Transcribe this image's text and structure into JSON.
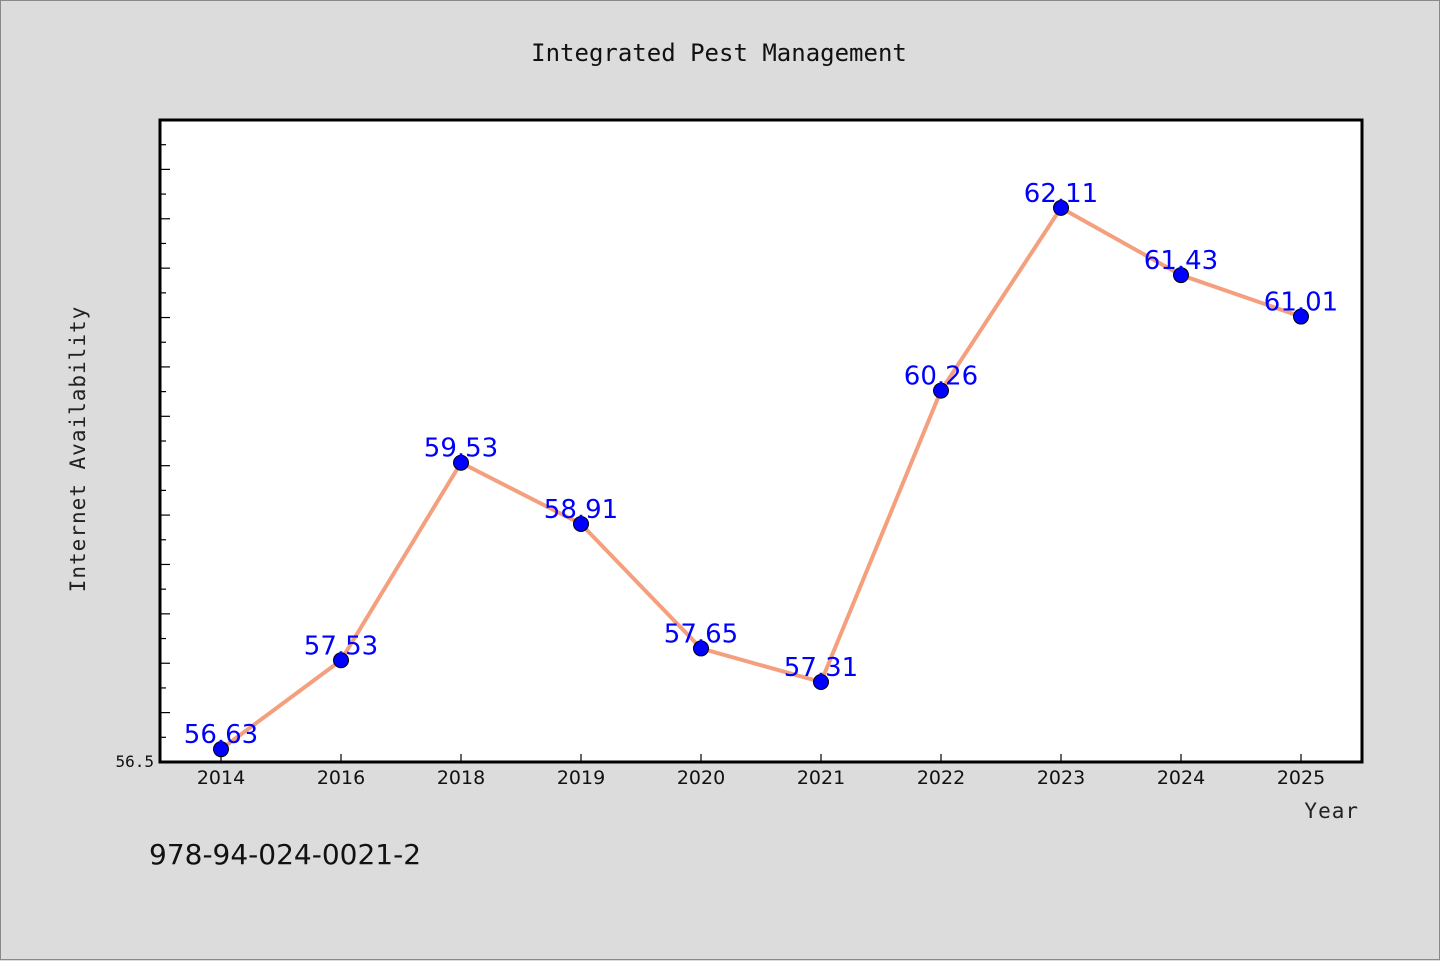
{
  "chart_data": {
    "type": "line",
    "title": "Integrated Pest Management",
    "xlabel": "Year",
    "ylabel": "Internet Availability",
    "categories": [
      "2014",
      "2016",
      "2018",
      "2019",
      "2020",
      "2021",
      "2022",
      "2023",
      "2024",
      "2025"
    ],
    "series": [
      {
        "values": [
          56.63,
          57.53,
          59.53,
          58.91,
          57.65,
          57.31,
          60.26,
          62.11,
          61.43,
          61.01
        ],
        "labels": [
          "56.63",
          "57.53",
          "59.53",
          "58.91",
          "57.65",
          "57.31",
          "60.26",
          "62.11",
          "61.43",
          "61.01"
        ],
        "line_color": "#f4a07e",
        "marker_color": "#0000ff"
      }
    ],
    "ylim": [
      56.5,
      63.0
    ],
    "y_min_label": "56.5",
    "grid": false,
    "legend": "none",
    "colors": {
      "background": "#dcdcdc",
      "plot_background": "#ffffff",
      "axis": "#000000"
    }
  },
  "caption": "978-94-024-0021-2"
}
